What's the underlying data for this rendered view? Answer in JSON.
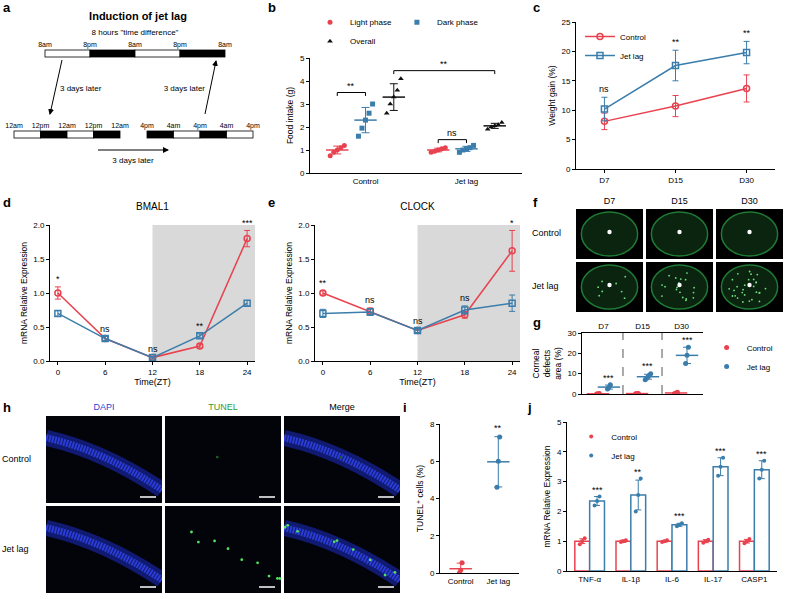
{
  "diagram": {
    "panel": "a",
    "title": "Induction of jet lag",
    "note": "8 hours \"time difference\"",
    "schedules": [
      {
        "labels": [
          "8am",
          "8pm",
          "8am",
          "8pm",
          "8am"
        ],
        "phases": [
          "light",
          "dark",
          "light",
          "dark"
        ]
      },
      {
        "labels": [
          "12am",
          "12pm",
          "12am",
          "12pm",
          "12am"
        ],
        "phases": [
          "light",
          "dark",
          "light",
          "dark"
        ]
      },
      {
        "labels": [
          "4pm",
          "4am",
          "4pm",
          "4am",
          "4pm"
        ],
        "phases": [
          "dark",
          "light",
          "dark",
          "light"
        ]
      }
    ],
    "arrows": [
      "3 days later",
      "3 days later",
      "3 days later"
    ]
  },
  "images_f": {
    "panel": "f",
    "columns": [
      "D7",
      "D15",
      "D30"
    ],
    "rows": [
      "Control",
      "Jet lag"
    ]
  },
  "images_h": {
    "panel": "h",
    "columns": [
      "DAPI",
      "TUNEL",
      "Merge"
    ],
    "rows": [
      "Control",
      "Jet lag"
    ]
  },
  "chart_data": [
    {
      "panel": "b",
      "type": "dot",
      "ylabel": "Food intake (g)",
      "categories": [
        "Control",
        "Jet lag"
      ],
      "ylim": [
        0,
        5
      ],
      "yticks": [
        0,
        1,
        2,
        3,
        4,
        5
      ],
      "legend": "top",
      "series": [
        {
          "name": "Light phase",
          "color": "#e8424f",
          "marker": "circle",
          "points": [
            [
              0.75,
              0.9,
              1.0,
              1.1,
              1.2
            ],
            [
              0.9,
              0.95,
              1.0,
              1.05,
              1.1
            ]
          ],
          "mean": [
            1.0,
            1.0
          ],
          "sd": [
            0.17,
            0.08
          ]
        },
        {
          "name": "Dark phase",
          "color": "#3b7dab",
          "marker": "square",
          "points": [
            [
              1.6,
              1.95,
              2.3,
              2.6,
              3.0
            ],
            [
              0.9,
              1.0,
              1.05,
              1.1,
              1.2
            ]
          ],
          "mean": [
            2.3,
            1.05
          ],
          "sd": [
            0.55,
            0.11
          ]
        },
        {
          "name": "Overall",
          "color": "#111111",
          "marker": "triangle",
          "points": [
            [
              2.6,
              3.0,
              3.3,
              3.6,
              4.1
            ],
            [
              1.9,
              2.0,
              2.05,
              2.1,
              2.2
            ]
          ],
          "mean": [
            3.3,
            2.05
          ],
          "sd": [
            0.58,
            0.11
          ]
        }
      ],
      "brackets": [
        {
          "from": [
            0,
            0
          ],
          "to": [
            0,
            1
          ],
          "y": 3.5,
          "text": "**"
        },
        {
          "from": [
            0,
            2
          ],
          "to": [
            1,
            2
          ],
          "y": 4.45,
          "text": "**"
        },
        {
          "from": [
            1,
            0
          ],
          "to": [
            1,
            1
          ],
          "y": 1.45,
          "text": "ns"
        }
      ]
    },
    {
      "panel": "c",
      "type": "line",
      "ylabel": "Weight gain (%)",
      "categories": [
        "D7",
        "D15",
        "D30"
      ],
      "ylim": [
        0,
        25
      ],
      "yticks": [
        0,
        5,
        10,
        15,
        20,
        25
      ],
      "legend": "top-left",
      "series": [
        {
          "name": "Control",
          "color": "#e8424f",
          "marker": "circle",
          "values": [
            8.1,
            10.7,
            13.7
          ],
          "error": [
            1.4,
            1.8,
            2.3
          ]
        },
        {
          "name": "Jet lag",
          "color": "#3b7dab",
          "marker": "square",
          "values": [
            10.2,
            17.6,
            19.8
          ],
          "error": [
            2.0,
            2.6,
            1.9
          ]
        }
      ],
      "annotations": [
        {
          "x": 0,
          "y": 12.4,
          "text": "ns"
        },
        {
          "x": 1,
          "y": 20.4,
          "text": "**"
        },
        {
          "x": 2,
          "y": 21.9,
          "text": "**"
        }
      ]
    },
    {
      "panel": "d",
      "type": "line",
      "title": "BMAL1",
      "xlabel": "Time(ZT)",
      "ylabel": "mRNA Relative Expression",
      "x": [
        0,
        6,
        12,
        18,
        24
      ],
      "xlim": [
        -1,
        25
      ],
      "xticks": [
        0,
        6,
        12,
        18,
        24
      ],
      "ylim": [
        0,
        2
      ],
      "yticks": [
        {
          "value": 0,
          "label": "0.0"
        },
        {
          "value": 0.5,
          "label": "0.5"
        },
        {
          "value": 1,
          "label": "1.0"
        },
        {
          "value": 1.5,
          "label": "1.5"
        },
        {
          "value": 2,
          "label": "2.0"
        }
      ],
      "shaded": [
        12,
        25
      ],
      "series": [
        {
          "color": "#e8424f",
          "marker": "circle",
          "values": [
            1.0,
            0.33,
            0.05,
            0.22,
            1.8
          ],
          "error": [
            0.09,
            0.03,
            0.02,
            0.03,
            0.12
          ]
        },
        {
          "color": "#3b7dab",
          "marker": "square",
          "values": [
            0.7,
            0.33,
            0.05,
            0.37,
            0.85
          ],
          "error": [
            0.04,
            0.03,
            0.02,
            0.03,
            0.04
          ]
        }
      ],
      "annotations": [
        {
          "x": 0,
          "y": 1.1,
          "text": "*"
        },
        {
          "x": 6,
          "y": 0.37,
          "text": "ns"
        },
        {
          "x": 12,
          "y": 0.08,
          "text": "ns"
        },
        {
          "x": 18,
          "y": 0.41,
          "text": "**"
        },
        {
          "x": 24,
          "y": 1.93,
          "text": "***"
        }
      ]
    },
    {
      "panel": "e",
      "type": "line",
      "title": "CLOCK",
      "xlabel": "Time(ZT)",
      "ylabel": "mRNA Relative Expression",
      "x": [
        0,
        6,
        12,
        18,
        24
      ],
      "xlim": [
        -1,
        25
      ],
      "xticks": [
        0,
        6,
        12,
        18,
        24
      ],
      "ylim": [
        0,
        2
      ],
      "yticks": [
        {
          "value": 0,
          "label": "0.0"
        },
        {
          "value": 0.5,
          "label": "0.5"
        },
        {
          "value": 1,
          "label": "1.0"
        },
        {
          "value": 1.5,
          "label": "1.5"
        },
        {
          "value": 2,
          "label": "2.0"
        }
      ],
      "shaded": [
        12,
        25
      ],
      "series": [
        {
          "color": "#e8424f",
          "marker": "circle",
          "values": [
            1.0,
            0.73,
            0.45,
            0.68,
            1.62
          ],
          "error": [
            0.03,
            0.05,
            0.03,
            0.05,
            0.3
          ]
        },
        {
          "color": "#3b7dab",
          "marker": "square",
          "values": [
            0.7,
            0.72,
            0.45,
            0.75,
            0.85
          ],
          "error": [
            0.06,
            0.05,
            0.03,
            0.06,
            0.12
          ]
        }
      ],
      "annotations": [
        {
          "x": 0,
          "y": 1.05,
          "text": "**"
        },
        {
          "x": 6,
          "y": 0.79,
          "text": "ns"
        },
        {
          "x": 12,
          "y": 0.49,
          "text": "ns"
        },
        {
          "x": 18,
          "y": 0.82,
          "text": "ns"
        },
        {
          "x": 24,
          "y": 1.93,
          "text": "*"
        }
      ]
    },
    {
      "panel": "g",
      "type": "dot",
      "ylabel": "Corneal defects area (%)",
      "categories": [
        "D7",
        "D15",
        "D30"
      ],
      "ylim": [
        0,
        30
      ],
      "yticks": [
        0,
        10,
        20,
        30
      ],
      "legend": "right",
      "series": [
        {
          "name": "Control",
          "color": "#e8424f",
          "marker": "circle",
          "points": [
            [
              0.0,
              0.1,
              0.2
            ],
            [
              0.1,
              0.2,
              0.3
            ],
            [
              0.3,
              0.5,
              0.8
            ]
          ],
          "mean": [
            0.1,
            0.2,
            0.5
          ],
          "sd": [
            0.1,
            0.1,
            0.25
          ]
        },
        {
          "name": "Jet lag",
          "color": "#3b7dab",
          "marker": "circle",
          "points": [
            [
              2.4,
              3.3,
              4.5
            ],
            [
              7.0,
              7.8,
              8.5,
              9.2,
              10.0
            ],
            [
              15.0,
              19.0,
              23.0
            ]
          ],
          "mean": [
            3.4,
            8.5,
            19.0
          ],
          "sd": [
            1.0,
            1.2,
            4.0
          ]
        }
      ],
      "annotations": [
        {
          "x": 0,
          "series": 1,
          "y": 4.6,
          "text": "***"
        },
        {
          "x": 1,
          "series": 1,
          "y": 10.2,
          "text": "***"
        },
        {
          "x": 2,
          "series": 1,
          "y": 23.2,
          "text": "***"
        }
      ]
    },
    {
      "panel": "i",
      "type": "dot",
      "ylabel": "TUNEL⁺ cells (%)",
      "categories": [
        "Control",
        "Jet lag"
      ],
      "ylim": [
        0,
        8
      ],
      "yticks": [
        0,
        2,
        4,
        6,
        8
      ],
      "series": [
        {
          "colors": [
            "#e8424f",
            "#3b7dab"
          ],
          "marker": "circle",
          "points": [
            [
              0.0,
              0.15,
              0.55
            ],
            [
              4.6,
              6.0,
              7.3
            ]
          ],
          "mean": [
            0.23,
            5.97
          ],
          "sd": [
            0.3,
            1.35
          ]
        }
      ],
      "annotations": [
        {
          "x": 1,
          "y": 7.4,
          "text": "**"
        }
      ]
    },
    {
      "panel": "j",
      "type": "bar",
      "ylabel": "mRNA Relative Expression",
      "categories": [
        "TNF-α",
        "IL-1β",
        "IL-6",
        "IL-17",
        "CASP1"
      ],
      "ylim": [
        0,
        5
      ],
      "yticks": [
        0,
        1,
        2,
        3,
        4,
        5
      ],
      "legend": "top-left",
      "series": [
        {
          "name": "Control",
          "color": "#e8424f",
          "values": [
            1,
            1,
            1,
            1,
            1
          ],
          "error": [
            0.08,
            0.04,
            0.03,
            0.05,
            0.06
          ],
          "points": [
            [
              0.9,
              1.0,
              1.1
            ],
            [
              0.97,
              1.0,
              1.03
            ],
            [
              0.97,
              1.0,
              1.03
            ],
            [
              0.95,
              1.0,
              1.05
            ],
            [
              0.93,
              1.0,
              1.07
            ]
          ]
        },
        {
          "name": "Jet lag",
          "color": "#3b7dab",
          "values": [
            2.35,
            2.55,
            1.55,
            3.5,
            3.4
          ],
          "error": [
            0.15,
            0.5,
            0.05,
            0.3,
            0.3
          ],
          "points": [
            [
              2.2,
              2.35,
              2.5
            ],
            [
              2.0,
              2.55,
              3.1
            ],
            [
              1.5,
              1.55,
              1.6
            ],
            [
              3.2,
              3.5,
              3.8
            ],
            [
              3.1,
              3.4,
              3.7
            ]
          ]
        }
      ],
      "annotations": [
        {
          "x": 0,
          "series": 1,
          "y": 2.5,
          "text": "***"
        },
        {
          "x": 1,
          "series": 1,
          "y": 3.1,
          "text": "**"
        },
        {
          "x": 2,
          "series": 1,
          "y": 1.6,
          "text": "***"
        },
        {
          "x": 3,
          "series": 1,
          "y": 3.8,
          "text": "***"
        },
        {
          "x": 4,
          "series": 1,
          "y": 3.7,
          "text": "***"
        }
      ]
    }
  ]
}
